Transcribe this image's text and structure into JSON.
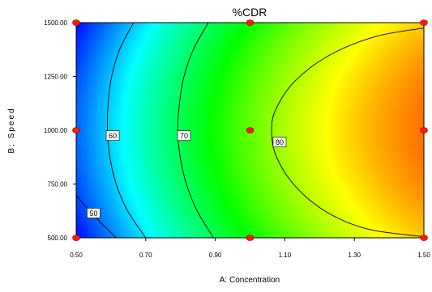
{
  "chart_data": {
    "type": "heatmap",
    "title": "%CDR",
    "xlabel": "A: Concentration",
    "ylabel": "B: Speed",
    "xlim": [
      0.5,
      1.5
    ],
    "ylim": [
      500,
      1500
    ],
    "x_ticks": [
      "0.50",
      "0.70",
      "0.90",
      "1.10",
      "1.30",
      "1.50"
    ],
    "y_ticks": [
      "500.00",
      "750.00",
      "1000.00",
      "1250.00",
      "1500.00"
    ],
    "colormap": [
      "#0000ff",
      "#00ffff",
      "#00ff00",
      "#ffff00",
      "#ff0000"
    ],
    "contours": [
      {
        "level": 50,
        "label": "50",
        "points": [
          [
            0.5,
            698
          ],
          [
            0.53,
            640
          ],
          [
            0.565,
            580
          ],
          [
            0.615,
            500
          ]
        ]
      },
      {
        "level": 60,
        "label": "60",
        "points": [
          [
            0.665,
            1500
          ],
          [
            0.625,
            1375
          ],
          [
            0.602,
            1250
          ],
          [
            0.592,
            1125
          ],
          [
            0.59,
            1000
          ],
          [
            0.597,
            875
          ],
          [
            0.615,
            750
          ],
          [
            0.648,
            625
          ],
          [
            0.7,
            500
          ]
        ]
      },
      {
        "level": 70,
        "label": "70",
        "points": [
          [
            0.88,
            1500
          ],
          [
            0.837,
            1375
          ],
          [
            0.81,
            1250
          ],
          [
            0.797,
            1125
          ],
          [
            0.792,
            1000
          ],
          [
            0.799,
            875
          ],
          [
            0.817,
            750
          ],
          [
            0.848,
            625
          ],
          [
            0.895,
            500
          ]
        ]
      },
      {
        "level": 80,
        "label": "80",
        "points": [
          [
            1.5,
            1475
          ],
          [
            1.36,
            1435
          ],
          [
            1.23,
            1350
          ],
          [
            1.13,
            1230
          ],
          [
            1.075,
            1100
          ],
          [
            1.062,
            1000
          ],
          [
            1.075,
            880
          ],
          [
            1.13,
            740
          ],
          [
            1.22,
            620
          ],
          [
            1.34,
            540
          ],
          [
            1.5,
            505
          ]
        ]
      }
    ],
    "design_points": [
      {
        "x": 0.5,
        "y": 1500
      },
      {
        "x": 1.0,
        "y": 1500
      },
      {
        "x": 1.5,
        "y": 1500
      },
      {
        "x": 0.5,
        "y": 1000
      },
      {
        "x": 1.0,
        "y": 1000
      },
      {
        "x": 1.5,
        "y": 1000
      },
      {
        "x": 0.5,
        "y": 500
      },
      {
        "x": 1.0,
        "y": 500
      },
      {
        "x": 1.5,
        "y": 500
      }
    ],
    "contour_label_positions": [
      {
        "label": "50",
        "x": 0.55,
        "y": 615
      },
      {
        "label": "60",
        "x": 0.605,
        "y": 975
      },
      {
        "label": "70",
        "x": 0.81,
        "y": 975
      },
      {
        "label": "80",
        "x": 1.085,
        "y": 945
      }
    ],
    "grid": false,
    "legend": "none"
  }
}
